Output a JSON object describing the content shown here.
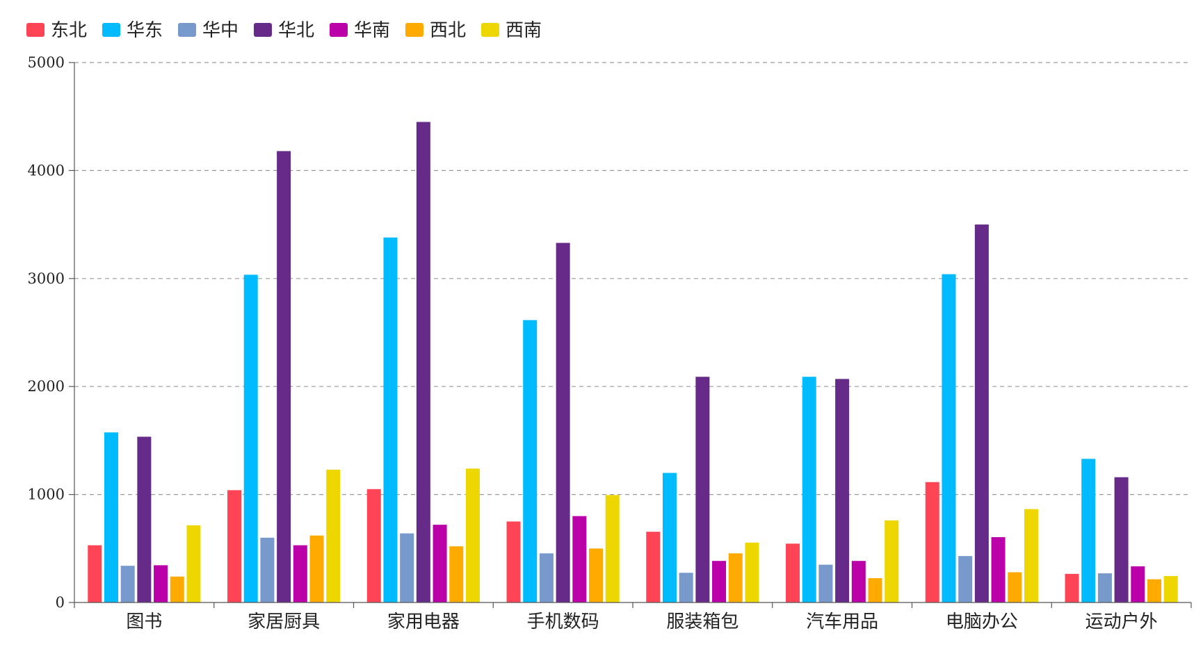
{
  "chart_data": {
    "type": "bar",
    "title": "",
    "xlabel": "",
    "ylabel": "",
    "ylim": [
      0,
      5000
    ],
    "yticks": [
      0,
      1000,
      2000,
      3000,
      4000,
      5000
    ],
    "grid": true,
    "legend_position": "top-left",
    "categories": [
      "图书",
      "家居厨具",
      "家用电器",
      "手机数码",
      "服装箱包",
      "汽车用品",
      "电脑办公",
      "运动户外"
    ],
    "series": [
      {
        "name": "东北",
        "color": "#ff4455",
        "values": [
          530,
          1040,
          1050,
          750,
          655,
          545,
          1115,
          265
        ]
      },
      {
        "name": "华东",
        "color": "#00bbff",
        "values": [
          1575,
          3035,
          3380,
          2615,
          1200,
          2090,
          3040,
          1330
        ]
      },
      {
        "name": "华中",
        "color": "#7799cc",
        "values": [
          340,
          600,
          640,
          455,
          275,
          350,
          430,
          270
        ]
      },
      {
        "name": "华北",
        "color": "#662b88",
        "values": [
          1535,
          4180,
          4450,
          3330,
          2090,
          2070,
          3500,
          1160
        ]
      },
      {
        "name": "华南",
        "color": "#bb00aa",
        "values": [
          345,
          530,
          720,
          800,
          385,
          385,
          605,
          335
        ]
      },
      {
        "name": "西北",
        "color": "#ffaa00",
        "values": [
          240,
          620,
          520,
          500,
          455,
          225,
          280,
          215
        ]
      },
      {
        "name": "西南",
        "color": "#eed700",
        "values": [
          715,
          1230,
          1240,
          995,
          555,
          760,
          865,
          245
        ]
      }
    ]
  }
}
